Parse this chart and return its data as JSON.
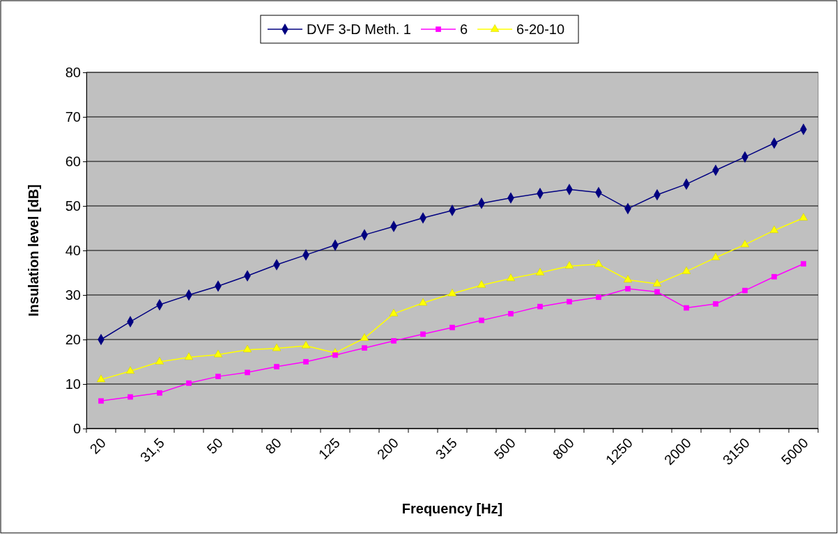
{
  "chart_data": {
    "type": "line",
    "xlabel": "Frequency [Hz]",
    "ylabel": "Insulation level [dB]",
    "categories": [
      "20",
      null,
      "31,5",
      null,
      "50",
      null,
      "80",
      null,
      "125",
      null,
      "200",
      null,
      "315",
      null,
      "500",
      null,
      "800",
      null,
      "1250",
      null,
      "2000",
      null,
      "3150",
      null,
      "5000"
    ],
    "series": [
      {
        "name": "DVF 3-D Meth. 1",
        "color": "#000080",
        "marker": "diamond",
        "values": [
          20,
          24,
          27.8,
          30,
          32,
          34.3,
          36.8,
          39,
          41.2,
          43.5,
          45.4,
          47.3,
          49,
          50.6,
          51.8,
          52.8,
          53.7,
          53,
          49.4,
          52.5,
          54.9,
          58,
          61,
          64.1,
          67.2
        ]
      },
      {
        "name": "6",
        "color": "#ff00ff",
        "marker": "square",
        "values": [
          6.2,
          7.1,
          8,
          10.2,
          11.7,
          12.6,
          13.9,
          15,
          16.5,
          18.1,
          19.7,
          21.2,
          22.7,
          24.3,
          25.8,
          27.4,
          28.5,
          29.5,
          31.4,
          30.7,
          27.1,
          28,
          31,
          34.1,
          37
        ]
      },
      {
        "name": "6-20-10",
        "color": "#ffff00",
        "marker": "triangle",
        "values": [
          11,
          12.9,
          15,
          16,
          16.6,
          17.7,
          18,
          18.6,
          17,
          20.3,
          25.8,
          28.2,
          30.3,
          32.2,
          33.7,
          35,
          36.5,
          36.9,
          33.4,
          32.5,
          35.3,
          38.4,
          41.3,
          44.5,
          47.3
        ]
      }
    ],
    "ylim": [
      0,
      80
    ],
    "yticks": [
      0,
      10,
      20,
      30,
      40,
      50,
      60,
      70,
      80
    ],
    "grid": "y",
    "legend": "top"
  }
}
